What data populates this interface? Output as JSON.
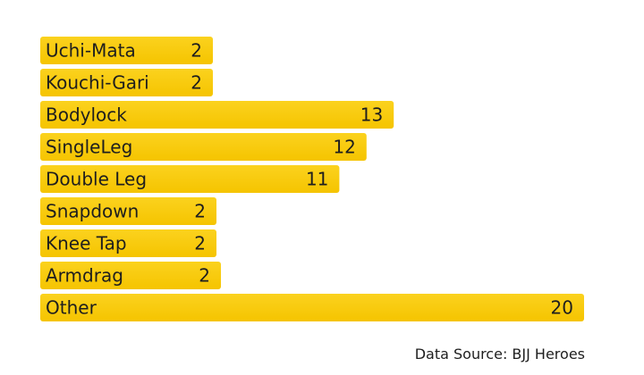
{
  "chart_data": {
    "type": "bar",
    "orientation": "horizontal",
    "categories": [
      "Uchi-Mata",
      "Kouchi-Gari",
      "Bodylock",
      "SingleLeg",
      "Double Leg",
      "Snapdown",
      "Knee Tap",
      "Armdrag",
      "Other"
    ],
    "values": [
      2,
      2,
      13,
      12,
      11,
      2,
      2,
      2,
      20
    ],
    "bar_color": "#F7C506",
    "bar_color_light": "#FAD21E",
    "labels_inside_bars": true,
    "grid": false,
    "legend": "none"
  },
  "source_text": "Data Source: BJJ Heroes"
}
